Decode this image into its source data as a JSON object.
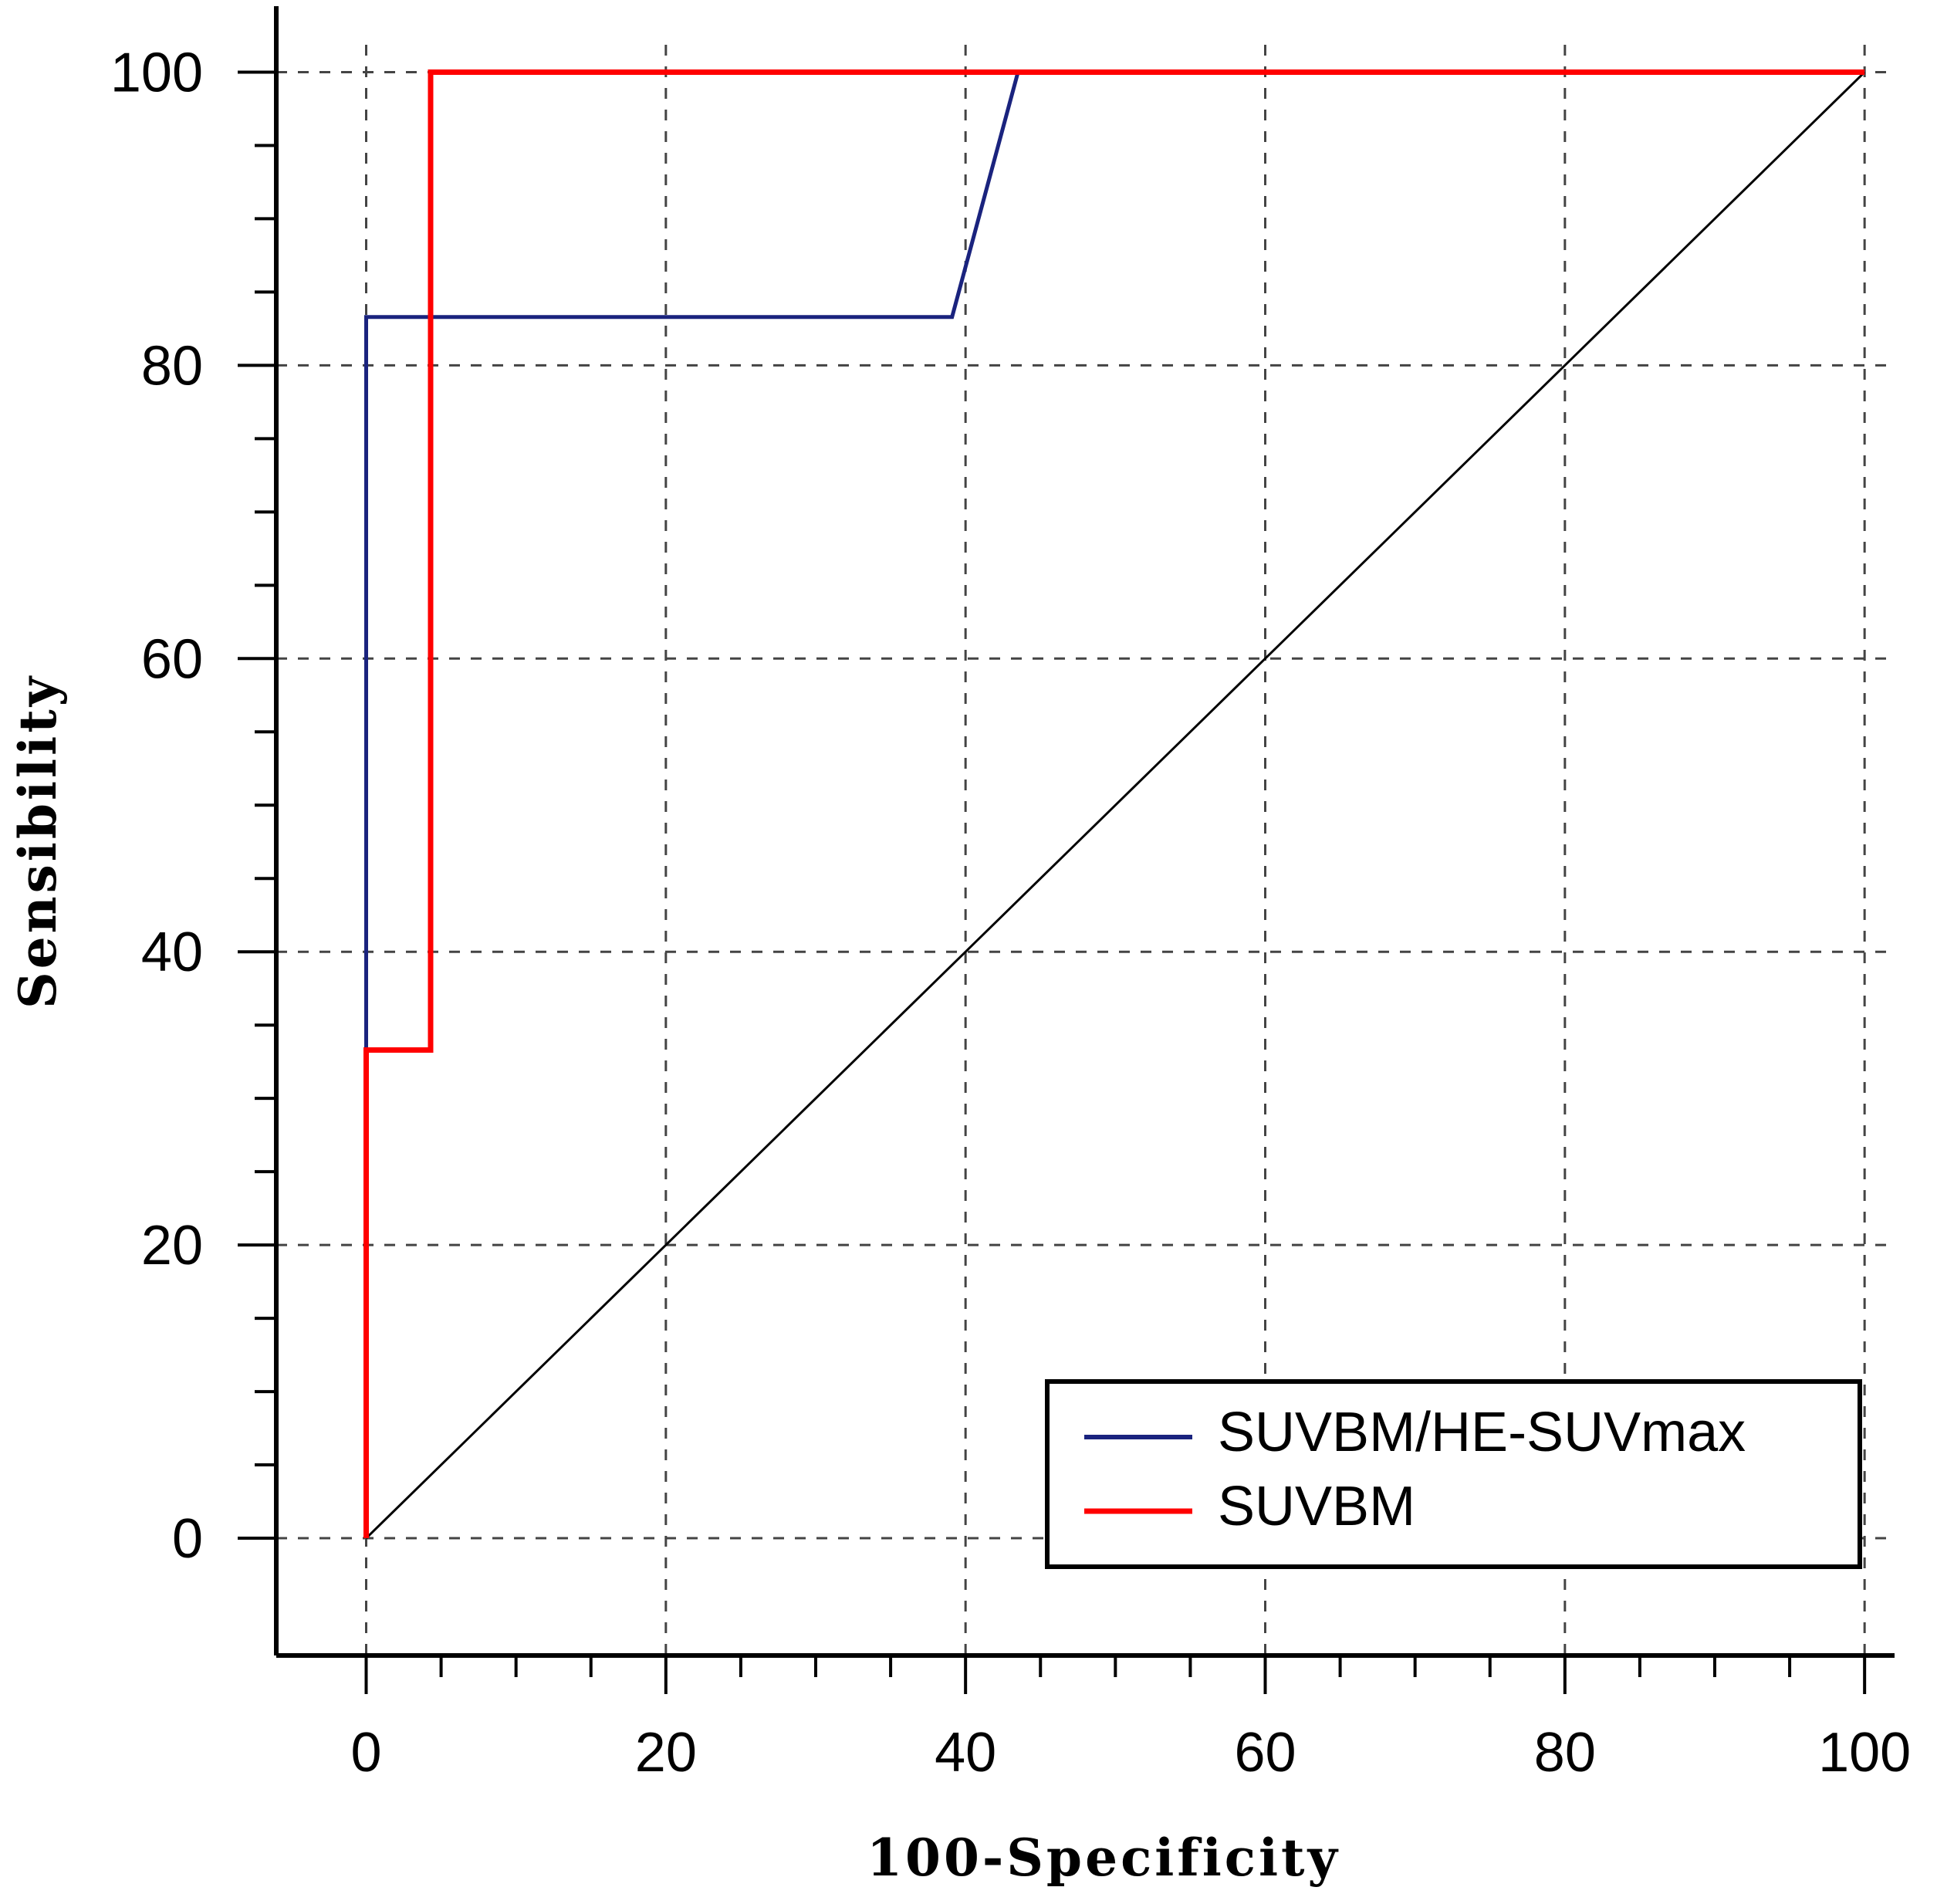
{
  "chart_data": {
    "type": "line",
    "title": "",
    "xlabel": "100-Specificity",
    "ylabel": "Sensibility",
    "xlim": [
      -6,
      102
    ],
    "ylim": [
      -8,
      104.5
    ],
    "x_ticks": [
      0,
      20,
      40,
      60,
      80,
      100
    ],
    "y_ticks": [
      0,
      20,
      40,
      60,
      80,
      100
    ],
    "x_minor_step": 5,
    "y_minor_step": 5,
    "grid": true,
    "legend_position": "bottom-right",
    "series": [
      {
        "name": "SUVBM/HE-SUVmax",
        "color": "#1a237e",
        "points": [
          [
            0,
            0
          ],
          [
            0,
            83.3
          ],
          [
            39.1,
            83.3
          ],
          [
            43.5,
            100
          ],
          [
            100,
            100
          ]
        ]
      },
      {
        "name": "SUVBM",
        "color": "#ff0000",
        "points": [
          [
            0,
            0
          ],
          [
            0,
            33.3
          ],
          [
            4.3,
            33.3
          ],
          [
            4.3,
            100
          ],
          [
            100,
            100
          ]
        ]
      }
    ],
    "reference_line": {
      "color": "#000000",
      "points": [
        [
          0,
          0
        ],
        [
          100,
          100
        ]
      ]
    }
  }
}
